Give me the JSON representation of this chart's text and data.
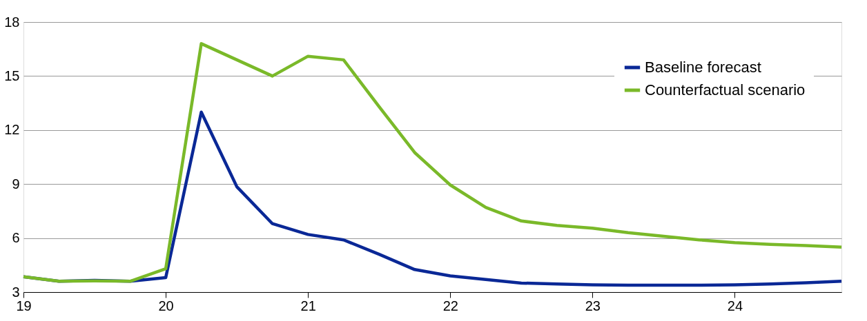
{
  "chart_data": {
    "type": "line",
    "x": [
      19,
      19.25,
      19.5,
      19.75,
      20,
      20.25,
      20.5,
      20.75,
      21,
      21.25,
      21.5,
      21.75,
      22,
      22.25,
      22.5,
      22.75,
      23,
      23.25,
      23.5,
      23.75,
      24,
      24.25,
      24.5,
      24.75
    ],
    "series": [
      {
        "name": "Baseline forecast",
        "color": "#0a2896",
        "values": [
          3.85,
          3.6,
          3.65,
          3.6,
          3.8,
          13.0,
          8.85,
          6.8,
          6.2,
          5.9,
          5.1,
          4.25,
          3.9,
          3.7,
          3.5,
          3.45,
          3.4,
          3.38,
          3.38,
          3.38,
          3.4,
          3.45,
          3.52,
          3.6
        ]
      },
      {
        "name": "Counterfactual scenario",
        "color": "#7ab929",
        "values": [
          3.85,
          3.6,
          3.62,
          3.6,
          4.3,
          16.8,
          15.9,
          15.0,
          16.1,
          15.9,
          13.3,
          10.75,
          8.95,
          7.7,
          6.95,
          6.7,
          6.55,
          6.3,
          6.1,
          5.9,
          5.75,
          5.65,
          5.58,
          5.5
        ]
      }
    ],
    "xlim": [
      19,
      24.75
    ],
    "xticks": [
      19,
      20,
      21,
      22,
      23,
      24
    ],
    "ylim": [
      3,
      18
    ],
    "yticks": [
      3,
      6,
      9,
      12,
      15,
      18
    ],
    "grid": "y",
    "legend": "top right",
    "marker": "none",
    "line_style": "solid"
  }
}
